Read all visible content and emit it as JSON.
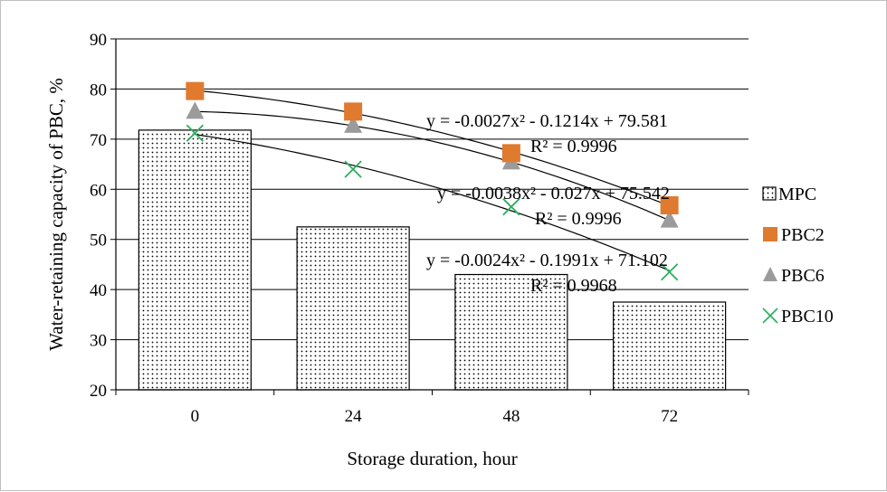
{
  "chart_data": {
    "type": "bar",
    "xlabel": "Storage duration, hour",
    "ylabel": "Water-retaining capacity of PBC, %",
    "categories": [
      "0",
      "24",
      "48",
      "72"
    ],
    "ylim": [
      20,
      90
    ],
    "yticks": [
      "20",
      "30",
      "40",
      "50",
      "60",
      "70",
      "80",
      "90"
    ],
    "grid": true,
    "legend_position": "right",
    "bar_series": {
      "name": "MPC",
      "values": [
        71.8,
        52.5,
        43.0,
        37.5
      ],
      "pattern": "dots"
    },
    "marker_series": [
      {
        "name": "PBC2",
        "marker": "square",
        "color": "#E07A2E",
        "values": [
          79.6,
          75.5,
          67.2,
          56.8
        ]
      },
      {
        "name": "PBC6",
        "marker": "triangle",
        "color": "#9B9B9B",
        "values": [
          75.5,
          72.7,
          65.4,
          53.8
        ]
      },
      {
        "name": "PBC10",
        "marker": "x",
        "color": "#2BAE5E",
        "values": [
          71.2,
          64.0,
          56.5,
          43.5
        ]
      }
    ],
    "trendlines": [
      {
        "series": "PBC2",
        "equation": "y = -0.0027x² - 0.1214x + 79.581",
        "r2": "R² = 0.9996"
      },
      {
        "series": "PBC6",
        "equation": "y = -0.0038x² - 0.027x + 75.542",
        "r2": "R² = 0.9996"
      },
      {
        "series": "PBC10",
        "equation": "y = -0.0024x² - 0.1991x + 71.102",
        "r2": "R² = 0.9968"
      }
    ]
  }
}
